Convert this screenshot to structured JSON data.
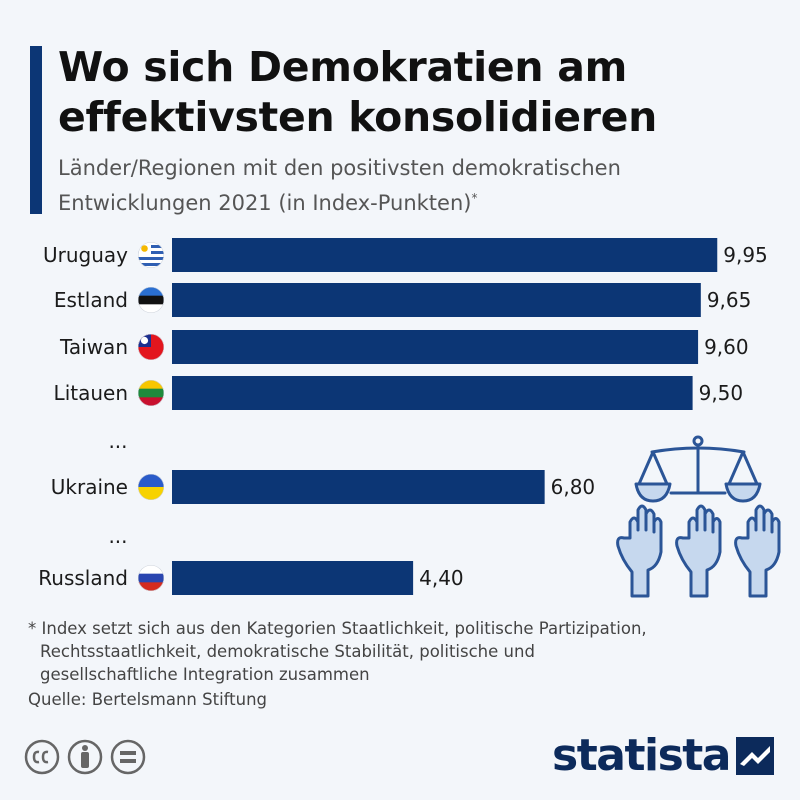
{
  "title": "Wo sich Demokratien am effektivsten konsolidieren",
  "subtitle": "Länder/Regionen mit den positivsten demokratischen Entwicklungen 2021 (in Index-Punkten)",
  "subtitle_marker": "*",
  "colors": {
    "bar": "#0c3675",
    "accent": "#0c3675",
    "background": "#f3f6fa",
    "icon": "#2b5597",
    "icon_fill": "#c6d8ee"
  },
  "chart_data": {
    "type": "bar",
    "orientation": "horizontal",
    "categories": [
      "Uruguay",
      "Estland",
      "Taiwan",
      "Litauen",
      "...",
      "Ukraine",
      "...",
      "Russland"
    ],
    "values": [
      9.95,
      9.65,
      9.6,
      9.5,
      null,
      6.8,
      null,
      4.4
    ],
    "value_labels": [
      "9,95",
      "9,65",
      "9,60",
      "9,50",
      "",
      "6,80",
      "",
      "4,40"
    ],
    "flags": [
      "uruguay-flag-icon",
      "estonia-flag-icon",
      "taiwan-flag-icon",
      "lithuania-flag-icon",
      "",
      "ukraine-flag-icon",
      "",
      "russia-flag-icon"
    ],
    "xlim": [
      0,
      10
    ],
    "grid": false,
    "legend": "none"
  },
  "decoration_icon": "scales-and-raised-hands-icon",
  "footnote": {
    "lines": [
      "* Index setzt sich aus den Kategorien Staatlichkeit, politische Partizipation,",
      "Rechtsstaatlichkeit, demokratische Stabilität, politische und",
      "gesellschaftliche Integration zusammen"
    ]
  },
  "source": "Quelle: Bertelsmann Stiftung",
  "license_icons": [
    "cc-icon",
    "by-attribution-icon",
    "nd-equals-icon"
  ],
  "logo": {
    "text": "statista",
    "icon": "statista-logo-icon"
  }
}
